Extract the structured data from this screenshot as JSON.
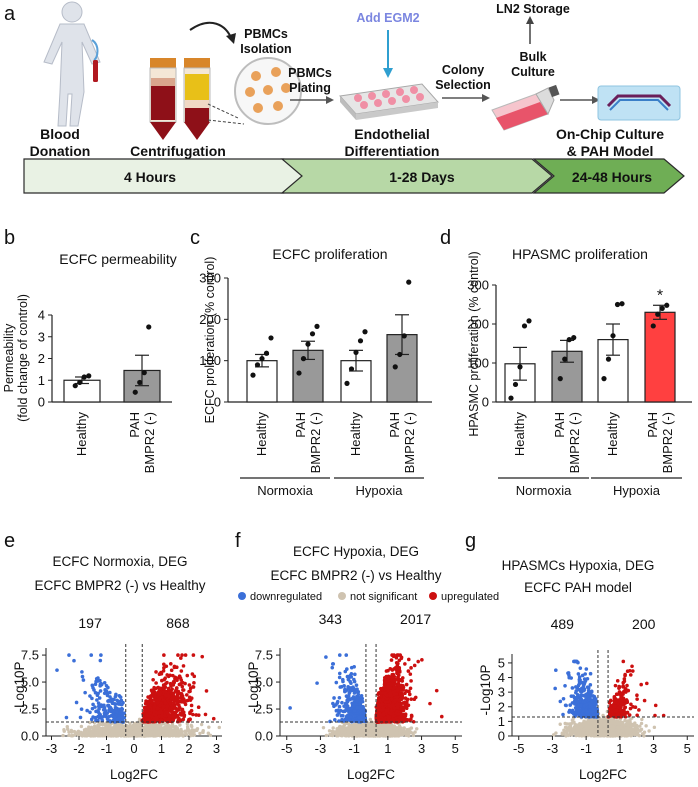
{
  "panel_a": {
    "letter": "a",
    "add_egm2": "Add EGM2",
    "ln2_storage": "LN2 Storage",
    "pbmcs_isolation_1": "PBMCs",
    "pbmcs_isolation_2": "Isolation",
    "pbmcs_plating_1": "PBMCs",
    "pbmcs_plating_2": "Plating",
    "colony_selection_1": "Colony",
    "colony_selection_2": "Selection",
    "bulk_culture_1": "Bulk",
    "bulk_culture_2": "Culture",
    "blood_donation_1": "Blood",
    "blood_donation_2": "Donation",
    "centrifugation": "Centrifugation",
    "endothelial_1": "Endothelial",
    "endothelial_2": "Differentiation",
    "onchip_1": "On-Chip Culture",
    "onchip_2": "& PAH Model",
    "timeline": [
      "4 Hours",
      "1-28 Days",
      "24-48 Hours"
    ],
    "colors": {
      "arrow1": "#e8f2e3",
      "arrow2": "#b9d9a8",
      "arrow3": "#6fae55",
      "add_egm2": "#7b86e0"
    }
  },
  "chart_data": [
    {
      "panel": "b",
      "type": "bar",
      "title": "ECFC permeability",
      "ylabel": "Permeability\n(fold change of control)",
      "ylabel_lines": [
        "Permeability",
        "(fold change of control)"
      ],
      "ylim": [
        0,
        4
      ],
      "yticks": [
        0,
        1,
        2,
        3,
        4
      ],
      "categories": [
        "Healthy",
        "PAH\nBMPR2 (-)"
      ],
      "cat_lines": [
        [
          "Healthy"
        ],
        [
          "PAH",
          "BMPR2 (-)"
        ]
      ],
      "values": [
        1.0,
        1.45
      ],
      "errors": [
        0.15,
        0.7
      ],
      "bar_colors": [
        "#ffffff",
        "#999999"
      ],
      "points": [
        [
          0.75,
          0.9,
          1.15,
          1.2
        ],
        [
          0.45,
          0.9,
          1.35,
          3.45
        ]
      ]
    },
    {
      "panel": "c",
      "type": "bar",
      "title": "ECFC proliferation",
      "ylabel": "ECFC proliferation (% control)",
      "ylim": [
        0,
        300
      ],
      "yticks": [
        0,
        100,
        200,
        300
      ],
      "categories": [
        "Healthy",
        "PAH\nBMPR2 (-)",
        "Healthy",
        "PAH\nBMPR2 (-)"
      ],
      "cat_lines": [
        [
          "Healthy"
        ],
        [
          "PAH",
          "BMPR2 (-)"
        ],
        [
          "Healthy"
        ],
        [
          "PAH",
          "BMPR2 (-)"
        ]
      ],
      "values": [
        100,
        125,
        100,
        163
      ],
      "errors": [
        15,
        22,
        25,
        48
      ],
      "bar_colors": [
        "#ffffff",
        "#999999",
        "#ffffff",
        "#999999"
      ],
      "points": [
        [
          65,
          90,
          105,
          118,
          155
        ],
        [
          70,
          105,
          140,
          165,
          183
        ],
        [
          45,
          80,
          120,
          148,
          170
        ],
        [
          85,
          115,
          160,
          290
        ]
      ],
      "groups": [
        "Normoxia",
        "Hypoxia"
      ]
    },
    {
      "panel": "d",
      "type": "bar",
      "title": "HPASMC proliferation",
      "ylabel": "HPASMC proliferation (% control)",
      "ylim": [
        0,
        300
      ],
      "yticks": [
        0,
        100,
        200,
        300
      ],
      "categories": [
        "Healthy",
        "PAH\nBMPR2 (-)",
        "Healthy",
        "PAH\nBMPR2 (-)"
      ],
      "cat_lines": [
        [
          "Healthy"
        ],
        [
          "PAH",
          "BMPR2 (-)"
        ],
        [
          "Healthy"
        ],
        [
          "PAH",
          "BMPR2 (-)"
        ]
      ],
      "values": [
        98,
        130,
        160,
        230
      ],
      "errors": [
        42,
        28,
        40,
        18
      ],
      "bar_colors": [
        "#ffffff",
        "#999999",
        "#ffffff",
        "#ff4040"
      ],
      "points": [
        [
          10,
          45,
          90,
          195,
          208
        ],
        [
          60,
          110,
          160,
          165
        ],
        [
          60,
          110,
          170,
          250,
          252
        ],
        [
          195,
          225,
          240,
          248
        ]
      ],
      "groups": [
        "Normoxia",
        "Hypoxia"
      ],
      "significance": "*"
    },
    {
      "panel": "e",
      "type": "scatter",
      "title_lines": [
        "ECFC  Normoxia, DEG",
        "ECFC BMPR2 (-) vs Healthy"
      ],
      "xlabel": "Log2FC",
      "ylabel": "-Log10P",
      "xlim": [
        -3.2,
        3.2
      ],
      "ylim": [
        0,
        7.6
      ],
      "xticks": [
        -3,
        -2,
        -1,
        0,
        1,
        2,
        3
      ],
      "yticks": [
        0.0,
        2.5,
        5.0,
        7.5
      ],
      "ytick_labels": [
        "0.0",
        "2.5",
        "5.0",
        "7.5"
      ],
      "down_count": "197",
      "up_count": "868",
      "fc_threshold": 0.3,
      "p_threshold": 1.3,
      "n_down": 197,
      "n_up": 868,
      "n_ns": 1400,
      "seed": 11,
      "outliers_down": [
        [
          -2.8,
          6.1
        ],
        [
          -1.6,
          2.2
        ],
        [
          -1.4,
          4.8
        ]
      ],
      "outliers_up": [
        [
          2.6,
          2.0
        ],
        [
          2.1,
          3.5
        ],
        [
          1.8,
          6.5
        ],
        [
          2.9,
          1.6
        ]
      ]
    },
    {
      "panel": "f",
      "type": "scatter",
      "title_lines": [
        "ECFC Hypoxia, DEG",
        "ECFC BMPR2 (-) vs Healthy"
      ],
      "xlabel": "Log2FC",
      "ylabel": "-Log10P",
      "xlim": [
        -5.4,
        5.4
      ],
      "ylim": [
        0,
        7.6
      ],
      "xticks": [
        -5,
        -3,
        -1,
        1,
        3,
        5
      ],
      "yticks": [
        0.0,
        2.5,
        5.0,
        7.5
      ],
      "ytick_labels": [
        "0.0",
        "2.5",
        "5.0",
        "7.5"
      ],
      "down_count": "343",
      "up_count": "2017",
      "fc_threshold": 0.3,
      "p_threshold": 1.3,
      "n_down": 343,
      "n_up": 2017,
      "n_ns": 1500,
      "seed": 23,
      "outliers_down": [
        [
          -4.8,
          2.6
        ],
        [
          -3.2,
          4.9
        ]
      ],
      "outliers_up": [
        [
          3.5,
          3.0
        ],
        [
          4.2,
          1.8
        ],
        [
          2.8,
          6.9
        ],
        [
          3.9,
          4.2
        ]
      ]
    },
    {
      "panel": "g",
      "type": "scatter",
      "title_lines": [
        "HPASMCs Hypoxia, DEG",
        "ECFC PAH model"
      ],
      "xlabel": "Log2FC",
      "ylabel": "-Log10P",
      "xlim": [
        -5.4,
        5.4
      ],
      "ylim": [
        0,
        5.2
      ],
      "xticks": [
        -5,
        -3,
        -1,
        1,
        3,
        5
      ],
      "yticks": [
        0,
        1,
        2,
        3,
        4,
        5
      ],
      "ytick_labels": [
        "0",
        "1",
        "2",
        "3",
        "4",
        "5"
      ],
      "down_count": "489",
      "up_count": "200",
      "fc_threshold": 0.3,
      "p_threshold": 1.3,
      "n_down": 489,
      "n_up": 200,
      "n_ns": 1400,
      "seed": 37,
      "outliers_down": [
        [
          -2.8,
          4.5
        ]
      ],
      "outliers_up": [
        [
          3.6,
          1.4
        ],
        [
          2.6,
          3.6
        ]
      ]
    }
  ],
  "legend_f": {
    "items": [
      {
        "label": "downregulated",
        "color": "#3b6fd8"
      },
      {
        "label": "not significant",
        "color": "#cfc3b0"
      },
      {
        "label": "upregulated",
        "color": "#cc1010"
      }
    ]
  },
  "colors": {
    "down": "#3b6fd8",
    "up": "#cc1010",
    "ns": "#cfc3b0"
  }
}
